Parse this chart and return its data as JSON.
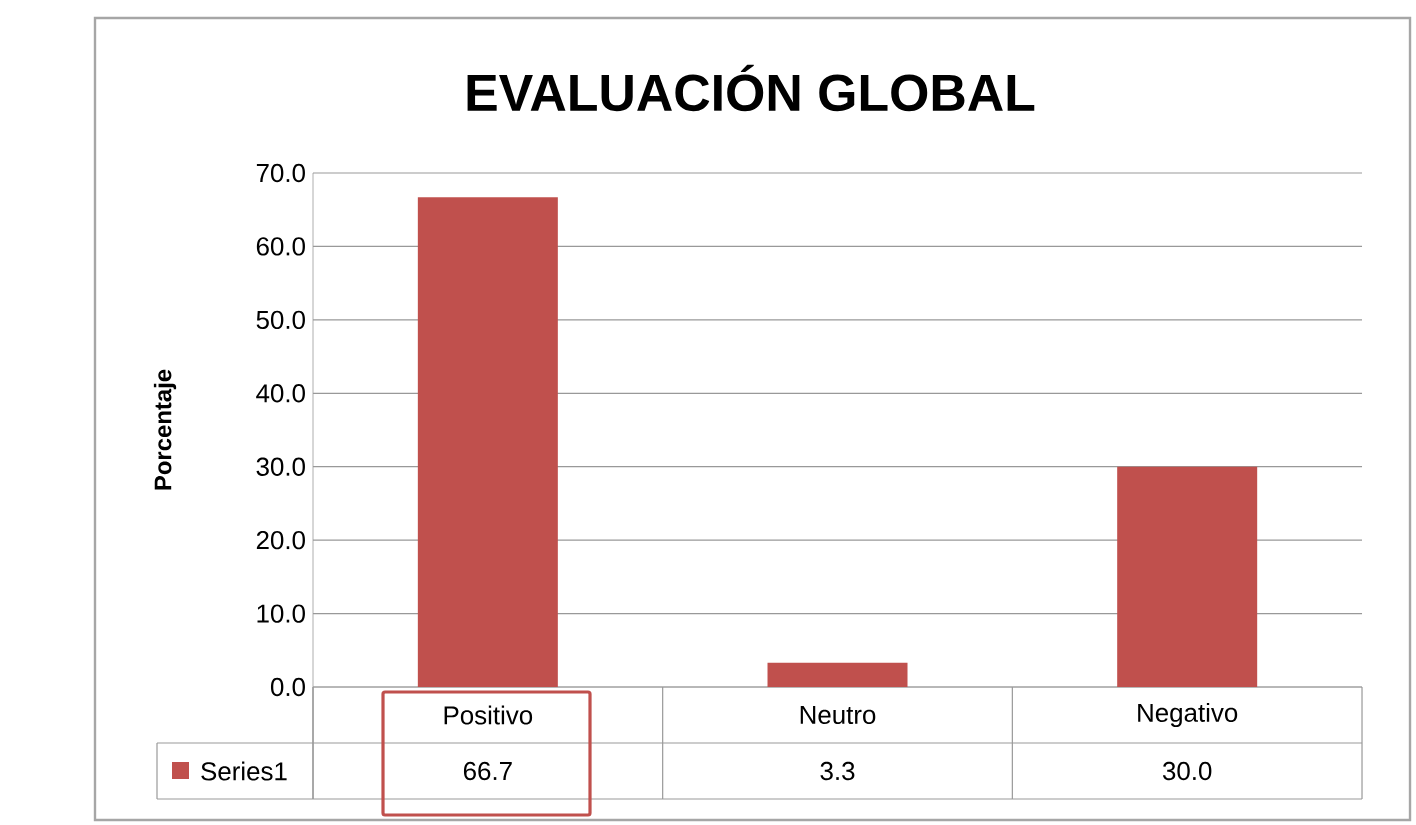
{
  "chart_data": {
    "type": "bar",
    "title": "EVALUACIÓN GLOBAL",
    "ylabel": "Porcentaje",
    "categories": [
      "Positivo",
      "Neutro",
      "Negativo"
    ],
    "series": [
      {
        "name": "Series1",
        "color": "#c0504d",
        "values": [
          66.7,
          3.3,
          30.0
        ],
        "value_labels": [
          "66.7",
          "3.3",
          "30.0"
        ]
      }
    ],
    "ylim": [
      0,
      70
    ],
    "yticks": [
      {
        "value": 0,
        "label": "0.0"
      },
      {
        "value": 10,
        "label": "10.0"
      },
      {
        "value": 20,
        "label": "20.0"
      },
      {
        "value": 30,
        "label": "30.0"
      },
      {
        "value": 40,
        "label": "40.0"
      },
      {
        "value": 50,
        "label": "50.0"
      },
      {
        "value": 60,
        "label": "60.0"
      },
      {
        "value": 70,
        "label": "70.0"
      }
    ],
    "grid": "y",
    "legend": "bottom left"
  }
}
